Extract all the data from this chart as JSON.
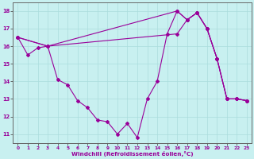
{
  "bg_color": "#c8f0f0",
  "line_color": "#990099",
  "grid_color": "#aadddd",
  "xlabel": "Windchill (Refroidissement éolien,°C)",
  "xlim": [
    -0.5,
    23.5
  ],
  "ylim": [
    10.5,
    18.5
  ],
  "xticks": [
    0,
    1,
    2,
    3,
    4,
    5,
    6,
    7,
    8,
    9,
    10,
    11,
    12,
    13,
    14,
    15,
    16,
    17,
    18,
    19,
    20,
    21,
    22,
    23
  ],
  "yticks": [
    11,
    12,
    13,
    14,
    15,
    16,
    17,
    18
  ],
  "curve1_x": [
    0,
    1,
    2,
    3,
    4,
    5,
    6,
    7,
    8,
    9,
    10,
    11,
    12,
    13,
    14,
    15,
    16,
    17,
    18,
    19,
    20,
    21,
    22,
    23
  ],
  "curve1_y": [
    16.5,
    15.5,
    15.9,
    16.0,
    14.1,
    13.8,
    12.9,
    12.5,
    11.8,
    11.7,
    11.0,
    11.6,
    10.8,
    13.0,
    14.0,
    16.7,
    18.0,
    17.5,
    17.9,
    17.0,
    15.3,
    13.0,
    13.0,
    12.9
  ],
  "curve2_x": [
    0,
    3,
    16,
    17,
    18,
    19,
    20,
    21,
    22,
    23
  ],
  "curve2_y": [
    16.5,
    16.0,
    18.0,
    17.5,
    17.9,
    17.0,
    15.3,
    13.0,
    13.0,
    12.9
  ],
  "curve3_x": [
    0,
    3,
    16,
    17,
    18,
    19,
    20,
    21,
    22,
    23
  ],
  "curve3_y": [
    16.5,
    16.0,
    16.7,
    17.5,
    17.9,
    17.0,
    15.3,
    13.0,
    13.0,
    12.9
  ]
}
